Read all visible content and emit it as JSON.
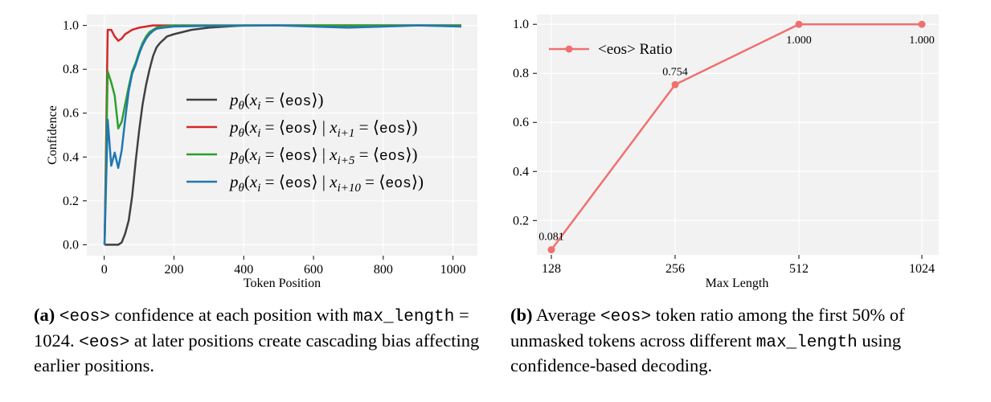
{
  "chart_data": [
    {
      "type": "line",
      "panel": "a",
      "xlabel": "Token Position",
      "ylabel": "Confidence",
      "xlim": [
        -50,
        1070
      ],
      "ylim": [
        -0.05,
        1.05
      ],
      "xticks": [
        "0",
        "200",
        "400",
        "600",
        "800",
        "1000"
      ],
      "yticks": [
        "0.0",
        "0.2",
        "0.4",
        "0.6",
        "0.8",
        "1.0"
      ],
      "grid": true,
      "legend_position": "center-right",
      "series": [
        {
          "name": "p_θ(x_i = ⟨eos⟩)",
          "color": "#404040",
          "x": [
            1,
            10,
            20,
            30,
            40,
            50,
            60,
            70,
            80,
            90,
            100,
            110,
            120,
            130,
            140,
            150,
            160,
            180,
            200,
            250,
            300,
            350,
            400,
            1024
          ],
          "y": [
            0,
            0,
            0,
            0,
            0,
            0.01,
            0.05,
            0.11,
            0.22,
            0.38,
            0.52,
            0.64,
            0.73,
            0.8,
            0.86,
            0.9,
            0.92,
            0.95,
            0.96,
            0.98,
            0.99,
            0.995,
            1.0,
            1.0
          ]
        },
        {
          "name": "p_θ(x_i = ⟨eos⟩ | x_{i+1} = ⟨eos⟩)",
          "color": "#d62728",
          "x": [
            1,
            10,
            20,
            30,
            40,
            50,
            60,
            70,
            80,
            100,
            120,
            140,
            160,
            180,
            200,
            1024
          ],
          "y": [
            0,
            0.98,
            0.98,
            0.95,
            0.93,
            0.94,
            0.96,
            0.97,
            0.98,
            0.99,
            0.995,
            1.0,
            1.0,
            1.0,
            1.0,
            1.0
          ]
        },
        {
          "name": "p_θ(x_i = ⟨eos⟩ | x_{i+5} = ⟨eos⟩)",
          "color": "#2ca02c",
          "x": [
            1,
            10,
            20,
            30,
            40,
            50,
            60,
            70,
            80,
            90,
            100,
            110,
            120,
            130,
            140,
            150,
            170,
            200,
            1024
          ],
          "y": [
            0,
            0.79,
            0.74,
            0.68,
            0.53,
            0.56,
            0.64,
            0.72,
            0.79,
            0.83,
            0.88,
            0.92,
            0.95,
            0.97,
            0.98,
            0.99,
            0.995,
            1.0,
            1.0
          ]
        },
        {
          "name": "p_θ(x_i = ⟨eos⟩ | x_{i+10} = ⟨eos⟩)",
          "color": "#1f77b4",
          "x": [
            1,
            10,
            20,
            30,
            40,
            50,
            60,
            70,
            80,
            90,
            100,
            110,
            120,
            130,
            140,
            150,
            170,
            200,
            300,
            500,
            700,
            900,
            1024
          ],
          "y": [
            0,
            0.57,
            0.36,
            0.42,
            0.35,
            0.43,
            0.57,
            0.7,
            0.78,
            0.82,
            0.87,
            0.91,
            0.94,
            0.96,
            0.975,
            0.985,
            0.99,
            0.995,
            0.998,
            1.0,
            0.99,
            1.0,
            0.995
          ]
        }
      ]
    },
    {
      "type": "line",
      "panel": "b",
      "xlabel": "Max Length",
      "ylabel": "",
      "categories": [
        "128",
        "256",
        "512",
        "1024"
      ],
      "yticks": [
        "0.2",
        "0.4",
        "0.6",
        "0.8",
        "1.0"
      ],
      "ylim": [
        0.06,
        1.04
      ],
      "grid": true,
      "legend_position": "top-left",
      "series": [
        {
          "name": "<eos> Ratio",
          "color": "#f07070",
          "values": [
            0.081,
            0.754,
            1.0,
            1.0
          ],
          "labels": [
            "0.081",
            "0.754",
            "1.000",
            "1.000"
          ]
        }
      ]
    }
  ],
  "captions": {
    "a": {
      "tag": "(a)",
      "eos_token": "<eos>",
      "text1": "confidence at each position with",
      "max_length_code": "max_length",
      "text2": "= 1024.",
      "eos_token2": "<eos>",
      "text3": "at later positions create cascading bias affecting earlier positions."
    },
    "b": {
      "tag": "(b)",
      "text1": "Average",
      "eos_token": "<eos>",
      "text2": "token ratio among the first 50% of unmasked tokens across different",
      "max_length_code": "max_length",
      "text3": "using confidence-based decoding."
    }
  }
}
